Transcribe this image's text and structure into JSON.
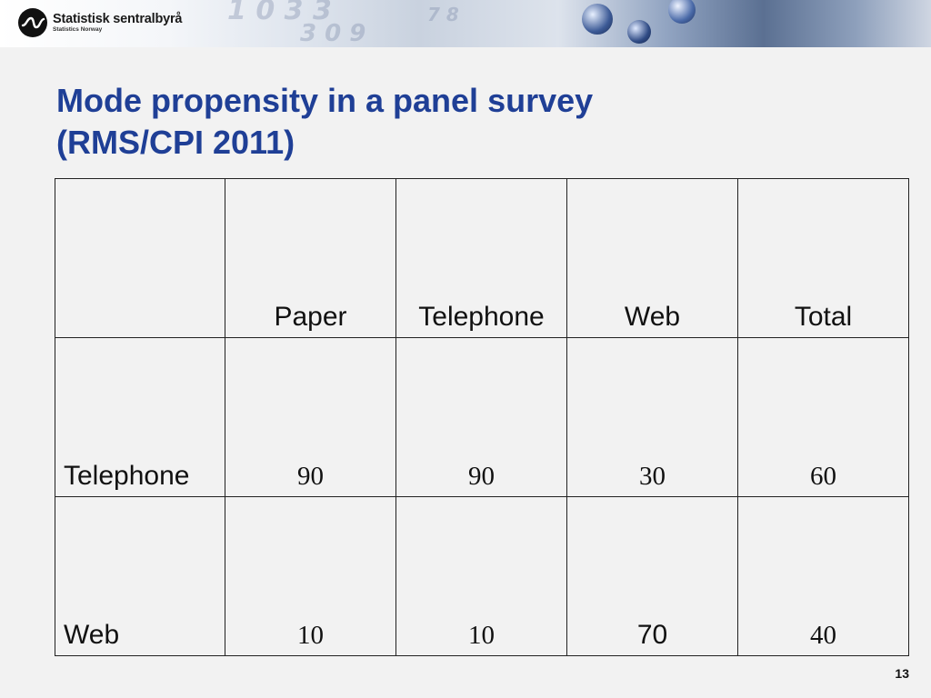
{
  "header": {
    "logo_name": "Statistisk sentralbyrå",
    "logo_subtitle": "Statistics Norway"
  },
  "slide": {
    "title_line1": "Mode propensity in a panel survey",
    "title_line2": "(RMS/CPI 2011)",
    "page_number": "13"
  },
  "table": {
    "columns": [
      "",
      "Paper",
      "Telephone",
      "Web",
      "Total"
    ],
    "rows": [
      {
        "label": "Telephone",
        "cells": [
          "90",
          "90",
          "30",
          "60"
        ]
      },
      {
        "label": "Web",
        "cells": [
          "10",
          "10",
          "70",
          "40"
        ]
      }
    ]
  }
}
